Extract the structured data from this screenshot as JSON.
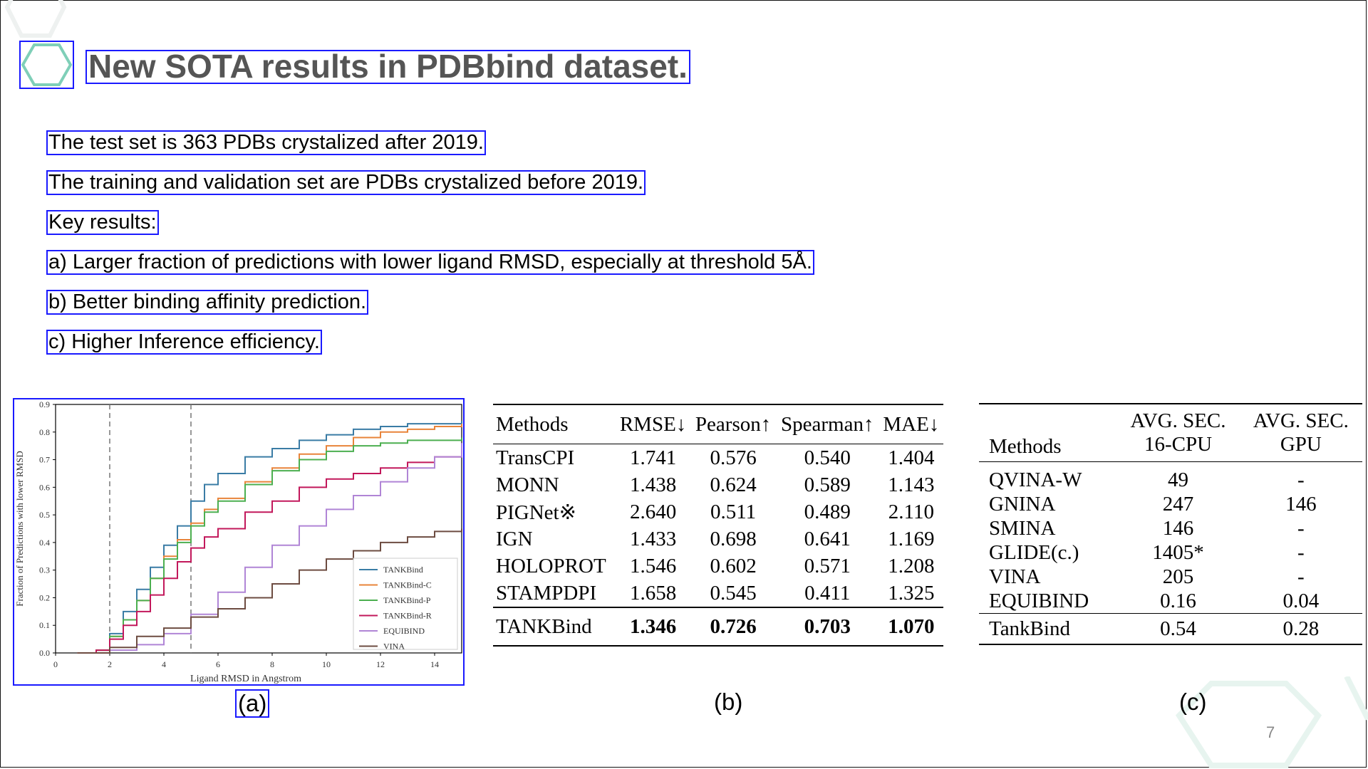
{
  "slide": {
    "title": "New SOTA results in PDBbind dataset.",
    "page_number": "7",
    "title_icon": "hexagon-icon",
    "accent_color": "#7fcfb8"
  },
  "bullets": [
    "The test set is 363 PDBs crystalized after 2019.",
    "The training and validation set are PDBs crystalized before 2019.",
    "Key results:",
    "a) Larger fraction of predictions with lower ligand RMSD, especially at threshold 5Å.",
    "b) Better binding affinity prediction.",
    "c) Higher Inference efficiency."
  ],
  "captions": {
    "a": "(a)",
    "b": "(b)",
    "c": "(c)"
  },
  "chart_data": {
    "type": "line",
    "title": "",
    "xlabel": "Ligand RMSD in Angstrom",
    "ylabel": "Fraction of Predictions with lower RMSD",
    "xlim": [
      0,
      15
    ],
    "ylim": [
      0,
      0.9
    ],
    "xticks": [
      "0",
      "2",
      "4",
      "6",
      "8",
      "10",
      "12",
      "14"
    ],
    "yticks": [
      "0.0",
      "0.1",
      "0.2",
      "0.3",
      "0.4",
      "0.5",
      "0.6",
      "0.7",
      "0.8",
      "0.9"
    ],
    "vlines": [
      2,
      5
    ],
    "grid": false,
    "legend_position": "lower-right",
    "series": [
      {
        "name": "TANKBind",
        "color": "#3a7ca5",
        "x": [
          0.8,
          1.5,
          2,
          2.5,
          3,
          3.5,
          4,
          4.5,
          5,
          5.5,
          6,
          7,
          8,
          9,
          10,
          11,
          12,
          13,
          14,
          15
        ],
        "y": [
          0,
          0.01,
          0.07,
          0.15,
          0.23,
          0.31,
          0.39,
          0.46,
          0.55,
          0.61,
          0.65,
          0.71,
          0.74,
          0.77,
          0.79,
          0.81,
          0.82,
          0.83,
          0.83,
          0.84
        ]
      },
      {
        "name": "TANKBind-C",
        "color": "#e8843a",
        "x": [
          0.8,
          1.5,
          2,
          2.5,
          3,
          3.5,
          4,
          4.5,
          5,
          5.5,
          6,
          7,
          8,
          9,
          10,
          11,
          12,
          13,
          14,
          15
        ],
        "y": [
          0,
          0.01,
          0.06,
          0.12,
          0.19,
          0.27,
          0.35,
          0.41,
          0.47,
          0.52,
          0.56,
          0.62,
          0.67,
          0.72,
          0.75,
          0.78,
          0.8,
          0.81,
          0.82,
          0.83
        ]
      },
      {
        "name": "TANKBind-P",
        "color": "#4caf50",
        "x": [
          0.8,
          1.5,
          2,
          2.5,
          3,
          3.5,
          4,
          4.5,
          5,
          5.5,
          6,
          7,
          8,
          9,
          10,
          11,
          12,
          13,
          14,
          15
        ],
        "y": [
          0,
          0.01,
          0.06,
          0.12,
          0.19,
          0.27,
          0.34,
          0.4,
          0.46,
          0.51,
          0.55,
          0.61,
          0.66,
          0.7,
          0.73,
          0.75,
          0.76,
          0.77,
          0.77,
          0.78
        ]
      },
      {
        "name": "TANKBind-R",
        "color": "#c2185b",
        "x": [
          0.8,
          1.5,
          2,
          2.5,
          3,
          3.5,
          4,
          4.5,
          5,
          5.5,
          6,
          7,
          8,
          9,
          10,
          11,
          12,
          13,
          14,
          15
        ],
        "y": [
          0,
          0.01,
          0.05,
          0.1,
          0.15,
          0.21,
          0.27,
          0.33,
          0.38,
          0.42,
          0.45,
          0.51,
          0.55,
          0.6,
          0.63,
          0.65,
          0.67,
          0.69,
          0.71,
          0.73
        ]
      },
      {
        "name": "EQUIBIND",
        "color": "#b085d6",
        "x": [
          0.8,
          1.5,
          2,
          3,
          4,
          5,
          6,
          7,
          8,
          9,
          10,
          11,
          12,
          13,
          14,
          15
        ],
        "y": [
          0,
          0,
          0.01,
          0.03,
          0.07,
          0.14,
          0.22,
          0.31,
          0.39,
          0.46,
          0.52,
          0.57,
          0.62,
          0.67,
          0.71,
          0.76
        ]
      },
      {
        "name": "VINA",
        "color": "#6d4c41",
        "x": [
          0.8,
          1.5,
          2,
          3,
          4,
          5,
          6,
          7,
          8,
          9,
          10,
          11,
          12,
          13,
          14,
          15
        ],
        "y": [
          0,
          0,
          0.02,
          0.06,
          0.09,
          0.13,
          0.16,
          0.2,
          0.25,
          0.3,
          0.34,
          0.37,
          0.4,
          0.42,
          0.44,
          0.45
        ]
      }
    ]
  },
  "table_b": {
    "headers": [
      "Methods",
      "RMSE↓",
      "Pearson↑",
      "Spearman↑",
      "MAE↓"
    ],
    "rows": [
      [
        "TransCPI",
        "1.741",
        "0.576",
        "0.540",
        "1.404"
      ],
      [
        "MONN",
        "1.438",
        "0.624",
        "0.589",
        "1.143"
      ],
      [
        "PIGNet※",
        "2.640",
        "0.511",
        "0.489",
        "2.110"
      ],
      [
        "IGN",
        "1.433",
        "0.698",
        "0.641",
        "1.169"
      ],
      [
        "HOLOPROT",
        "1.546",
        "0.602",
        "0.571",
        "1.208"
      ],
      [
        "STAMPDPI",
        "1.658",
        "0.545",
        "0.411",
        "1.325"
      ]
    ],
    "best": [
      "TANKBind",
      "1.346",
      "0.726",
      "0.703",
      "1.070"
    ]
  },
  "table_c": {
    "headers": [
      "Methods",
      "AVG. SEC.",
      "16-CPU",
      "AVG. SEC.",
      "GPU"
    ],
    "rows": [
      [
        "QVINA-W",
        "49",
        "-"
      ],
      [
        "GNINA",
        "247",
        "146"
      ],
      [
        "SMINA",
        "146",
        "-"
      ],
      [
        "GLIDE(c.)",
        "1405*",
        "-"
      ],
      [
        "VINA",
        "205",
        "-"
      ],
      [
        "EQUIBIND",
        "0.16",
        "0.04"
      ]
    ],
    "last": [
      "TankBind",
      "0.54",
      "0.28"
    ]
  }
}
